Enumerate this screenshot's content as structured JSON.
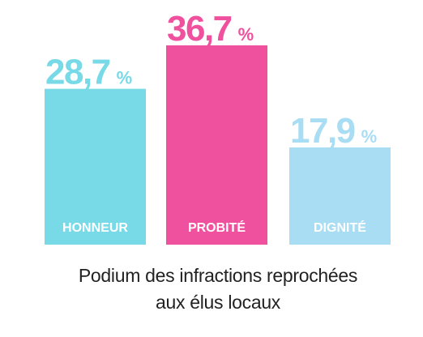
{
  "chart_data": {
    "type": "bar",
    "categories": [
      "HONNEUR",
      "PROBITÉ",
      "DIGNITÉ"
    ],
    "values": [
      28.7,
      36.7,
      17.9
    ],
    "value_labels": [
      "28,7 %",
      "36,7 %",
      "17,9 %"
    ],
    "colors": [
      "#78d9e7",
      "#ef519e",
      "#a9ddf3"
    ],
    "ylim": [
      0,
      36.7
    ],
    "grid": false,
    "legend": "none"
  },
  "caption": {
    "line1": "Podium des infractions reprochées",
    "line2": "aux élus locaux"
  }
}
